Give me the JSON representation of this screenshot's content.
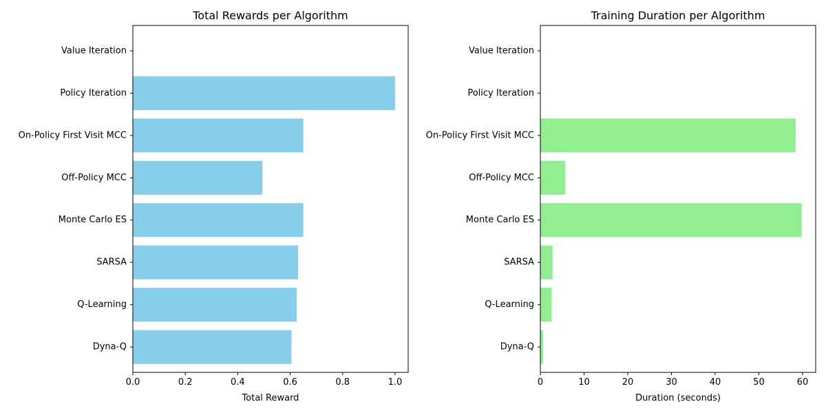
{
  "chart_data": [
    {
      "type": "bar",
      "orientation": "horizontal",
      "title": "Total Rewards per Algorithm",
      "xlabel": "Total Reward",
      "ylabel": "",
      "categories": [
        "Value Iteration",
        "Policy Iteration",
        "On-Policy First Visit MCC",
        "Off-Policy MCC",
        "Monte Carlo ES",
        "SARSA",
        "Q-Learning",
        "Dyna-Q"
      ],
      "values": [
        0.0,
        1.0,
        0.65,
        0.494,
        0.65,
        0.63,
        0.625,
        0.605
      ],
      "xlim": [
        0,
        1.05
      ],
      "xticks": [
        "0.0",
        "0.2",
        "0.4",
        "0.6",
        "0.8",
        "1.0"
      ],
      "color": "#87ceeb",
      "grid": false,
      "legend": "none"
    },
    {
      "type": "bar",
      "orientation": "horizontal",
      "title": "Training Duration per Algorithm",
      "xlabel": "Duration (seconds)",
      "ylabel": "",
      "categories": [
        "Value Iteration",
        "Policy Iteration",
        "On-Policy First Visit MCC",
        "Off-Policy MCC",
        "Monte Carlo ES",
        "SARSA",
        "Q-Learning",
        "Dyna-Q"
      ],
      "values": [
        0.0,
        0.0,
        58.4,
        5.7,
        59.8,
        2.8,
        2.6,
        0.6
      ],
      "xlim": [
        0,
        63
      ],
      "xticks": [
        "0",
        "10",
        "20",
        "30",
        "40",
        "50",
        "60"
      ],
      "color": "#90ee90",
      "grid": false,
      "legend": "none"
    }
  ]
}
